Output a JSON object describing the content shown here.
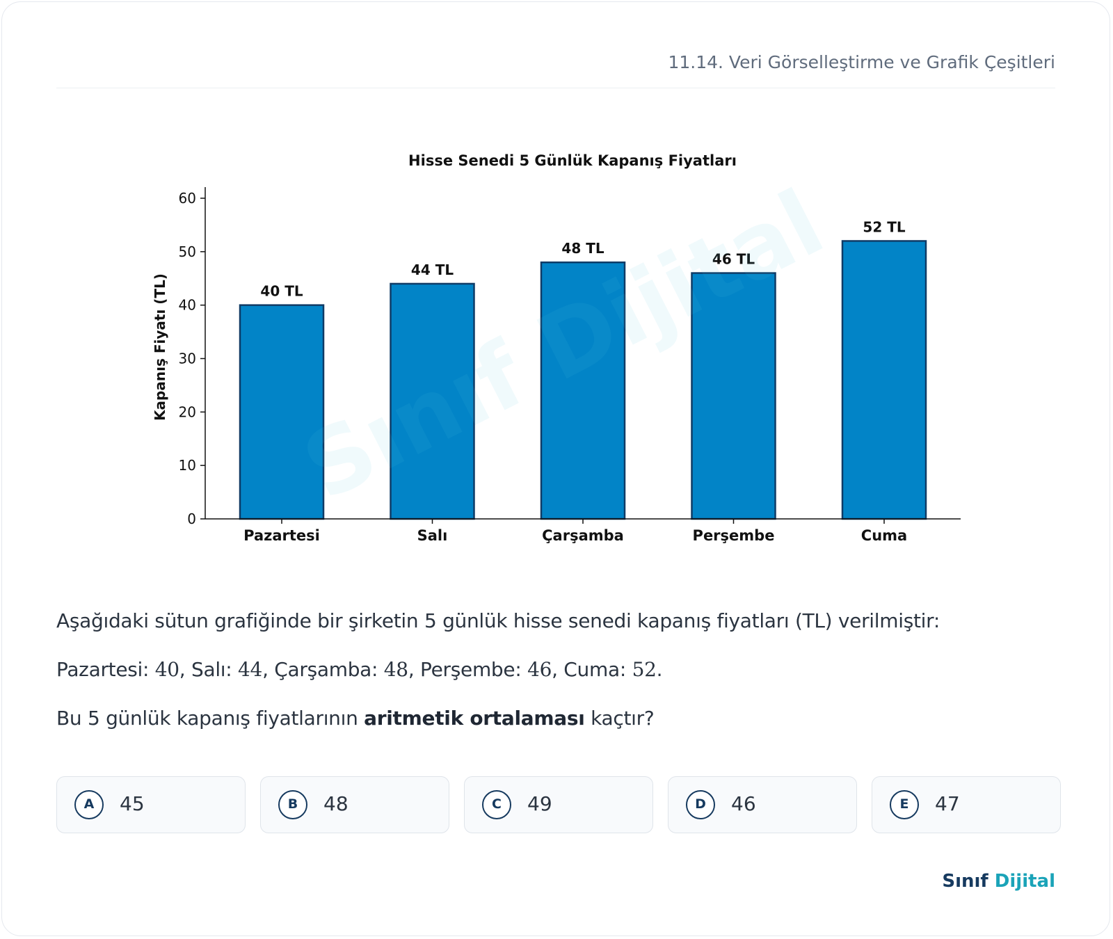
{
  "header": {
    "topic": "11.14. Veri Görselleştirme ve Grafik Çeşitleri"
  },
  "chart_data": {
    "type": "bar",
    "title": "Hisse Senedi 5 Günlük Kapanış Fiyatları",
    "xlabel": "",
    "ylabel": "Kapanış Fiyatı (TL)",
    "categories": [
      "Pazartesi",
      "Salı",
      "Çarşamba",
      "Perşembe",
      "Cuma"
    ],
    "values": [
      40,
      44,
      48,
      46,
      52
    ],
    "data_labels": [
      "40 TL",
      "44 TL",
      "48 TL",
      "46 TL",
      "52 TL"
    ],
    "ylim": [
      0,
      60
    ],
    "yticks": [
      0,
      10,
      20,
      30,
      40,
      50,
      60
    ],
    "bar_color": "#0284c7",
    "bar_edge_color": "#0f3b66",
    "grid": false
  },
  "watermark": "Sınıf Dijital",
  "question": {
    "intro": "Aşağıdaki sütun grafiğinde bir şirketin 5 günlük hisse senedi kapanış fiyatları (TL) verilmiştir:",
    "data_line": {
      "mon_label": "Pazartesi: ",
      "mon_value": "40",
      "tue_label": ", Salı: ",
      "tue_value": "44",
      "wed_label": ", Çarşamba: ",
      "wed_value": "48",
      "thu_label": ", Perşembe: ",
      "thu_value": "46",
      "fri_label": ", Cuma: ",
      "fri_value": "52",
      "end": "."
    },
    "ask_pre": "Bu 5 günlük kapanış fiyatlarının ",
    "ask_bold": "aritmetik ortalaması",
    "ask_post": " kaçtır?"
  },
  "options": [
    {
      "letter": "A",
      "value": "45"
    },
    {
      "letter": "B",
      "value": "48"
    },
    {
      "letter": "C",
      "value": "49"
    },
    {
      "letter": "D",
      "value": "46"
    },
    {
      "letter": "E",
      "value": "47"
    }
  ],
  "brand": {
    "part1": "Sınıf",
    "part2": "Dijital"
  },
  "colors": {
    "accent": "#163a5f",
    "brand_teal": "#1aa3b8"
  }
}
